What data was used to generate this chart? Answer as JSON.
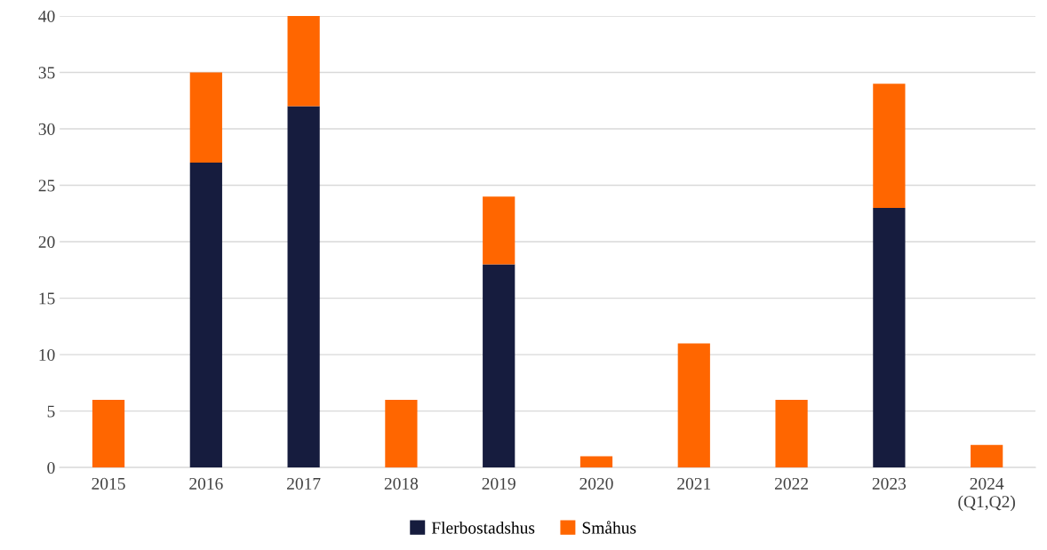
{
  "chart_data": {
    "type": "bar",
    "stacked": true,
    "categories": [
      "2015",
      "2016",
      "2017",
      "2018",
      "2019",
      "2020",
      "2021",
      "2022",
      "2023",
      "2024\n(Q1,Q2)"
    ],
    "series": [
      {
        "name": "Flerbostadshus",
        "color": "#161c3e",
        "values": [
          0,
          27,
          32,
          0,
          18,
          0,
          0,
          0,
          23,
          0
        ]
      },
      {
        "name": "Småhus",
        "color": "#ff6600",
        "values": [
          6,
          8,
          8,
          6,
          6,
          1,
          11,
          6,
          11,
          2
        ]
      }
    ],
    "ylim": [
      0,
      40
    ],
    "yticks": [
      0,
      5,
      10,
      15,
      20,
      25,
      30,
      35,
      40
    ],
    "grid": "y",
    "legend": "bottom"
  }
}
